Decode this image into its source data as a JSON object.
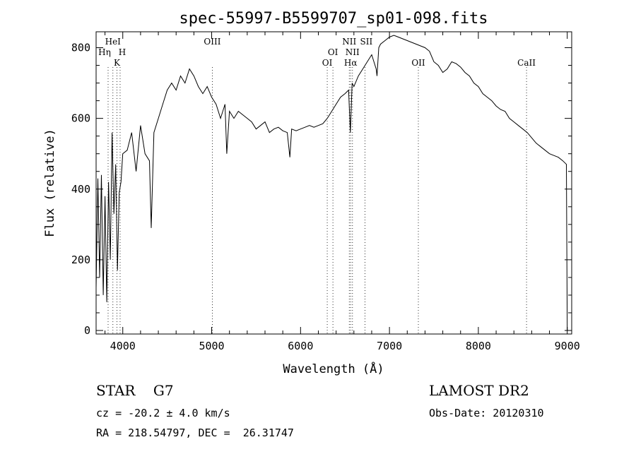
{
  "chart_data": {
    "type": "line",
    "title": "spec-55997-B5599707_sp01-098.fits",
    "xlabel": "Wavelength (Å)",
    "ylabel": "Flux (relative)",
    "xlim": [
      3700,
      9050
    ],
    "ylim": [
      -10,
      845
    ],
    "xticks": [
      4000,
      5000,
      6000,
      7000,
      8000,
      9000
    ],
    "yticks": [
      0,
      200,
      400,
      600,
      800
    ],
    "grid": false,
    "series": [
      {
        "x": [
          3700,
          3720,
          3740,
          3760,
          3780,
          3800,
          3820,
          3840,
          3860,
          3880,
          3900,
          3920,
          3940,
          3960,
          3980,
          4000,
          4050,
          4100,
          4150,
          4200,
          4250,
          4300,
          4320,
          4350,
          4400,
          4450,
          4500,
          4550,
          4600,
          4650,
          4700,
          4750,
          4800,
          4850,
          4900,
          4950,
          5000,
          5050,
          5100,
          5150,
          5170,
          5200,
          5250,
          5300,
          5350,
          5400,
          5450,
          5500,
          5550,
          5600,
          5650,
          5700,
          5750,
          5800,
          5850,
          5880,
          5900,
          5950,
          6000,
          6050,
          6100,
          6150,
          6200,
          6250,
          6300,
          6350,
          6400,
          6450,
          6500,
          6540,
          6560,
          6580,
          6600,
          6650,
          6700,
          6750,
          6800,
          6850,
          6860,
          6880,
          6900,
          6950,
          7000,
          7050,
          7100,
          7150,
          7200,
          7250,
          7300,
          7350,
          7400,
          7450,
          7500,
          7550,
          7600,
          7650,
          7700,
          7750,
          7800,
          7850,
          7900,
          7950,
          8000,
          8050,
          8100,
          8150,
          8200,
          8250,
          8300,
          8350,
          8400,
          8450,
          8500,
          8550,
          8600,
          8650,
          8700,
          8750,
          8800,
          8850,
          8900,
          8950,
          8990,
          9000
        ],
        "y": [
          120,
          430,
          150,
          440,
          100,
          380,
          80,
          420,
          200,
          560,
          330,
          470,
          170,
          390,
          420,
          500,
          510,
          560,
          450,
          580,
          500,
          480,
          290,
          560,
          600,
          640,
          680,
          700,
          680,
          720,
          700,
          740,
          720,
          690,
          670,
          690,
          660,
          640,
          600,
          640,
          500,
          620,
          600,
          620,
          610,
          600,
          590,
          570,
          580,
          590,
          560,
          570,
          575,
          565,
          560,
          490,
          570,
          565,
          570,
          575,
          580,
          575,
          580,
          585,
          600,
          620,
          640,
          660,
          670,
          680,
          560,
          700,
          690,
          720,
          740,
          760,
          780,
          740,
          720,
          800,
          810,
          820,
          830,
          835,
          830,
          825,
          820,
          815,
          810,
          805,
          800,
          790,
          760,
          750,
          730,
          740,
          760,
          755,
          745,
          730,
          720,
          700,
          690,
          670,
          660,
          650,
          635,
          625,
          620,
          600,
          590,
          580,
          570,
          560,
          545,
          530,
          520,
          510,
          500,
          495,
          490,
          480,
          470,
          0
        ]
      }
    ],
    "lines": [
      {
        "label": "HeI",
        "x": 3889
      },
      {
        "label": "Hη",
        "x": 3835
      },
      {
        "label": "H",
        "x": 3970
      },
      {
        "label": "K",
        "x": 3934
      },
      {
        "label": "OIII",
        "x": 5007
      },
      {
        "label": "OI",
        "x": 6300
      },
      {
        "label": "OI",
        "x": 6364
      },
      {
        "label": "NII",
        "x": 6548
      },
      {
        "label": "NII",
        "x": 6584
      },
      {
        "label": "Hα",
        "x": 6563
      },
      {
        "label": "SII",
        "x": 6724
      },
      {
        "label": "OII",
        "x": 7325
      },
      {
        "label": "CaII",
        "x": 8542
      }
    ]
  },
  "info": {
    "object": "STAR    G7",
    "survey": "LAMOST DR2",
    "velocity": "cz = -20.2 ± 4.0 km/s",
    "obsdate": "Obs-Date: 20120310",
    "coords": "RA = 218.54797, DEC =  26.31747"
  }
}
